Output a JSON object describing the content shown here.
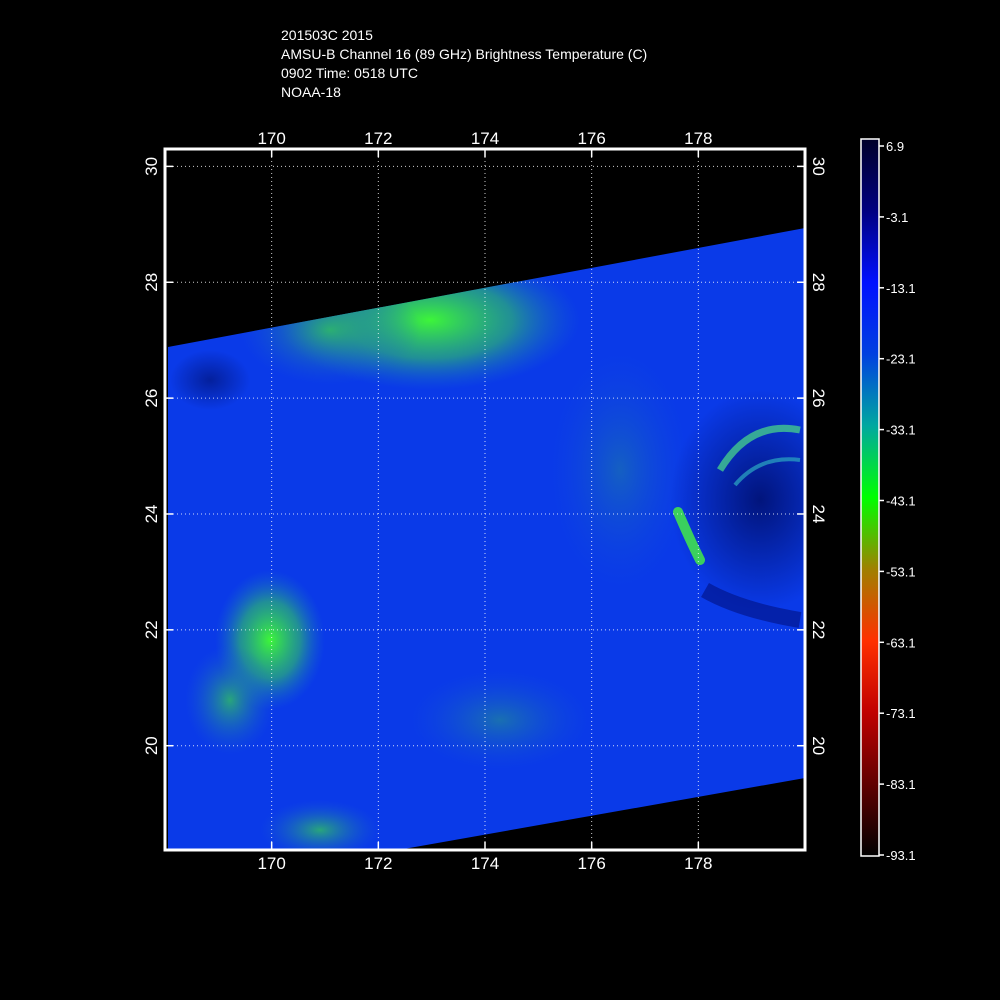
{
  "title": {
    "line1": "201503C 2015",
    "line2": "AMSU-B Channel 16 (89 GHz) Brightness Temperature (C)",
    "line3": "0902 Time: 0518 UTC",
    "line4": "NOAA-18"
  },
  "map": {
    "x_ticks": [
      "170",
      "172",
      "174",
      "176",
      "178"
    ],
    "x_tick_values": [
      170,
      172,
      174,
      176,
      178
    ],
    "y_ticks": [
      "30",
      "28",
      "26",
      "24",
      "22",
      "20"
    ],
    "y_tick_values": [
      30,
      28,
      26,
      24,
      22,
      20
    ],
    "lon_range": [
      168,
      180
    ],
    "lat_range": [
      18.2,
      30.3
    ],
    "grid": "dotted"
  },
  "colorbar": {
    "labels": [
      "6.9",
      "-3.1",
      "-13.1",
      "-23.1",
      "-33.1",
      "-43.1",
      "-53.1",
      "-63.1",
      "-73.1",
      "-83.1",
      "-93.1"
    ],
    "colors": [
      "#00002a",
      "#000080",
      "#0010ff",
      "#0040e0",
      "#00a8a0",
      "#00ff00",
      "#a08000",
      "#ff3000",
      "#c00000",
      "#600000",
      "#000000"
    ]
  },
  "colors": {
    "background": "#000000",
    "frame": "#ffffff",
    "swath_base": "#0a3ae8",
    "cold_cloud": "#40e040"
  }
}
